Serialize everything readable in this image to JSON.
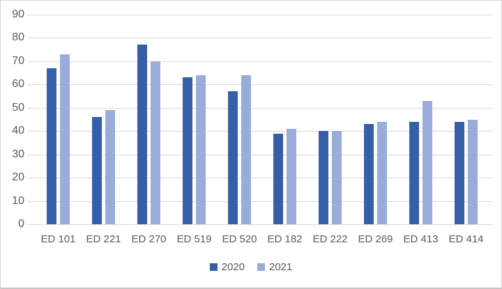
{
  "chart_data": {
    "type": "bar",
    "title": "",
    "categories": [
      "ED 101",
      "ED 221",
      "ED 270",
      "ED 519",
      "ED 520",
      "ED 182",
      "ED 222",
      "ED 269",
      "ED 413",
      "ED 414"
    ],
    "series": [
      {
        "name": "2020",
        "color": "#3560a8",
        "values": [
          67,
          46,
          77,
          63,
          57,
          39,
          40,
          43,
          44,
          44
        ]
      },
      {
        "name": "2021",
        "color": "#99acda",
        "values": [
          73,
          49,
          70,
          64,
          64,
          41,
          40,
          44,
          53,
          45
        ]
      }
    ],
    "ylim": [
      0,
      90
    ],
    "ytick_step": 10,
    "yticks": [
      90,
      80,
      70,
      60,
      50,
      40,
      30,
      20,
      10,
      0
    ],
    "grid": true,
    "gridline_color": "#d9d9d9",
    "axis_text_color": "#595959",
    "frame_color": "#d6d6d6",
    "background_color": "#ffffff",
    "legend_position": "bottom"
  }
}
